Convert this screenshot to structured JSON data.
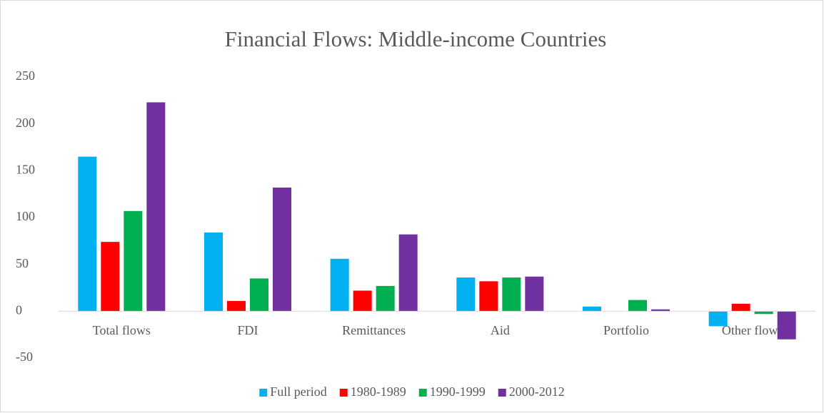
{
  "chart_data": {
    "type": "bar",
    "title": "Financial Flows: Middle-income Countries",
    "categories": [
      "Total flows",
      "FDI",
      "Remittances",
      "Aid",
      "Portfolio",
      "Other flows"
    ],
    "series": [
      {
        "name": "Full period",
        "color": "#00b0f0",
        "values": [
          165,
          84,
          56,
          36,
          5,
          -16
        ]
      },
      {
        "name": "1980-1989",
        "color": "#ff0000",
        "values": [
          74,
          11,
          22,
          32,
          0,
          8
        ]
      },
      {
        "name": "1990-1999",
        "color": "#00b050",
        "values": [
          107,
          35,
          27,
          36,
          12,
          -3
        ]
      },
      {
        "name": "2000-2012",
        "color": "#7030a0",
        "values": [
          223,
          132,
          82,
          37,
          2,
          -30
        ]
      }
    ],
    "ylim": [
      -50,
      250
    ],
    "yticks": [
      -50,
      0,
      50,
      100,
      150,
      200,
      250
    ],
    "grid": false,
    "legend": "bottom"
  }
}
